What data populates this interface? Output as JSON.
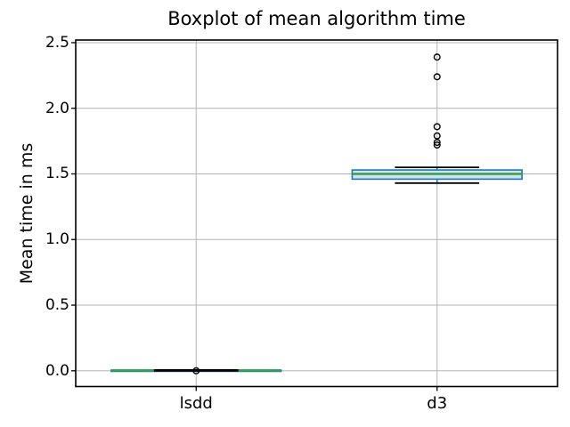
{
  "chart_data": {
    "type": "boxplot",
    "title": "Boxplot of mean algorithm time",
    "ylabel": "Mean time in ms",
    "xlabel": "",
    "categories": [
      "lsdd",
      "d3"
    ],
    "positions": [
      1,
      2
    ],
    "xlim": [
      0.5,
      2.5
    ],
    "ylim": [
      -0.12,
      2.52
    ],
    "yticks": [
      0.0,
      0.5,
      1.0,
      1.5,
      2.0,
      2.5
    ],
    "ytick_labels": [
      "0.0",
      "0.5",
      "1.0",
      "1.5",
      "2.0",
      "2.5"
    ],
    "grid": true,
    "legend": false,
    "series": [
      {
        "name": "lsdd",
        "position": 1,
        "whislo": 0.0,
        "q1": 0.001,
        "med": 0.003,
        "q3": 0.005,
        "whishi": 0.006,
        "fliers": [
          0.0
        ]
      },
      {
        "name": "d3",
        "position": 2,
        "whislo": 1.43,
        "q1": 1.46,
        "med": 1.5,
        "q3": 1.53,
        "whishi": 1.55,
        "fliers": [
          1.72,
          1.74,
          1.79,
          1.86,
          2.24,
          2.39
        ]
      }
    ],
    "style": {
      "box_width": 0.705,
      "cap_width": 0.35,
      "box_edge_color": "#1f77b4",
      "box_fill_color": "#cfe4ee",
      "median_color": "#34a04a",
      "whisker_color": "#1f77b4",
      "cap_color": "#000000",
      "flier_edge_color": "#000000",
      "grid_color": "#b4b4b4",
      "spine_color": "#000000",
      "background": "#ffffff"
    }
  }
}
